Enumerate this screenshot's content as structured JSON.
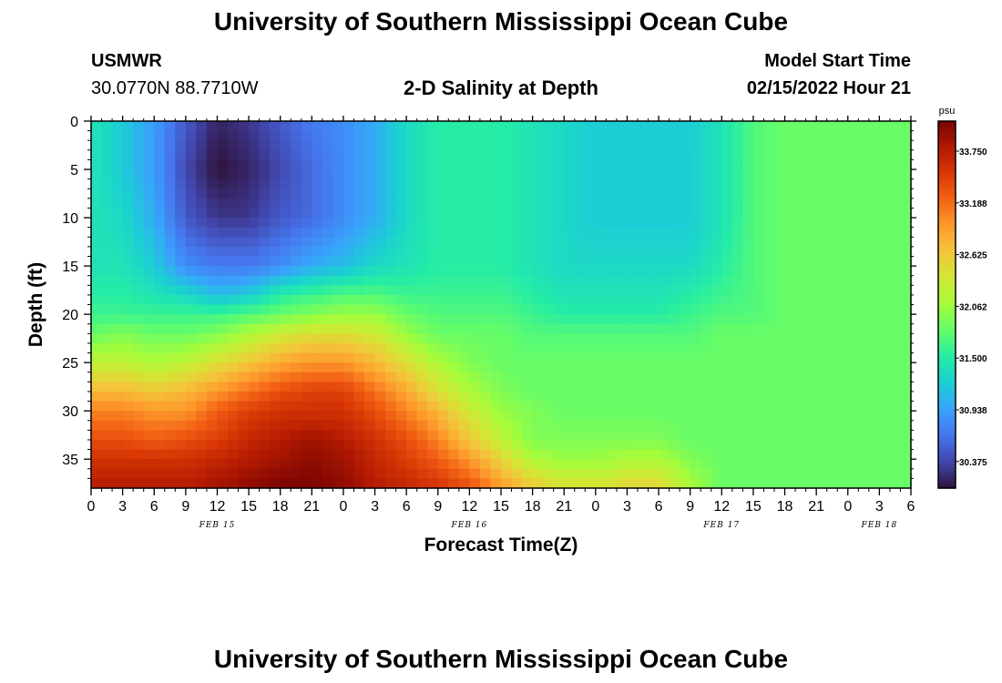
{
  "header": {
    "title": "University of Southern Mississippi Ocean Cube",
    "station": "USMWR",
    "coordinates": "30.0770N  88.7710W",
    "subtitle": "2-D Salinity at Depth",
    "model_start_label": "Model Start Time",
    "model_start_value": "02/15/2022 Hour 21"
  },
  "footer": {
    "title": "University of Southern Mississippi Ocean Cube"
  },
  "colorbar": {
    "unit": "psu",
    "ticks": [
      "33.750",
      "33.188",
      "32.625",
      "32.062",
      "31.500",
      "30.938",
      "30.375"
    ]
  },
  "chart_data": {
    "type": "heatmap",
    "title": "2-D Salinity at Depth",
    "xlabel": "Forecast Time(Z)",
    "ylabel": "Depth (ft)",
    "x_tick_labels": [
      "0",
      "3",
      "6",
      "9",
      "12",
      "15",
      "18",
      "21",
      "0",
      "3",
      "6",
      "9",
      "12",
      "15",
      "18",
      "21",
      "0",
      "3",
      "6",
      "9",
      "12",
      "15",
      "18",
      "21",
      "0",
      "3",
      "6"
    ],
    "x_day_labels": [
      {
        "label": "FEB 15",
        "hours": 12
      },
      {
        "label": "FEB 16",
        "hours": 36
      },
      {
        "label": "FEB 17",
        "hours": 60
      },
      {
        "label": "FEB 18",
        "hours": 75
      }
    ],
    "xlim_hours": [
      0,
      78
    ],
    "y_ticks": [
      0,
      5,
      10,
      15,
      20,
      25,
      30,
      35
    ],
    "ylim": [
      38,
      0
    ],
    "value_range": [
      30.1,
      34.0
    ],
    "colormap": [
      "#30123b",
      "#4145ab",
      "#4675ed",
      "#39a2fc",
      "#1bcfd4",
      "#24eca6",
      "#61fc6c",
      "#a4fc3b",
      "#d1e834",
      "#f3c63a",
      "#fe9b2d",
      "#f36315",
      "#d93806",
      "#b11901",
      "#7a0402"
    ],
    "salinity_hours": [
      0,
      3,
      6,
      9,
      12,
      15,
      18,
      21,
      24,
      27,
      30,
      33,
      36,
      39,
      42,
      45,
      48,
      51,
      54,
      57,
      60,
      63,
      66,
      69,
      72,
      75,
      78
    ],
    "salinity_depths_ft": [
      0,
      5,
      10,
      15,
      18,
      20,
      22,
      25,
      28,
      30,
      33,
      35,
      38
    ],
    "salinity_psu": [
      [
        31.4,
        31.2,
        30.9,
        30.5,
        30.2,
        30.3,
        30.5,
        30.7,
        30.8,
        31.0,
        31.3,
        31.5,
        31.5,
        31.5,
        31.4,
        31.3,
        31.2,
        31.2,
        31.2,
        31.2,
        31.4,
        31.7,
        31.8,
        31.8,
        31.8,
        31.8,
        31.8
      ],
      [
        31.4,
        31.2,
        30.9,
        30.4,
        30.1,
        30.2,
        30.4,
        30.6,
        30.8,
        31.0,
        31.3,
        31.5,
        31.5,
        31.5,
        31.4,
        31.3,
        31.2,
        31.2,
        31.2,
        31.2,
        31.4,
        31.7,
        31.8,
        31.8,
        31.8,
        31.8,
        31.8
      ],
      [
        31.4,
        31.3,
        31.0,
        30.5,
        30.3,
        30.3,
        30.5,
        30.6,
        30.8,
        31.0,
        31.3,
        31.5,
        31.5,
        31.5,
        31.4,
        31.3,
        31.2,
        31.2,
        31.2,
        31.2,
        31.4,
        31.7,
        31.8,
        31.8,
        31.8,
        31.8,
        31.8
      ],
      [
        31.4,
        31.4,
        31.2,
        30.8,
        30.7,
        30.7,
        30.8,
        31.0,
        31.1,
        31.3,
        31.4,
        31.5,
        31.5,
        31.5,
        31.4,
        31.3,
        31.3,
        31.3,
        31.3,
        31.3,
        31.5,
        31.7,
        31.8,
        31.8,
        31.8,
        31.8,
        31.8
      ],
      [
        31.5,
        31.5,
        31.4,
        31.3,
        31.1,
        31.2,
        31.5,
        31.6,
        31.7,
        31.7,
        31.6,
        31.6,
        31.6,
        31.6,
        31.5,
        31.4,
        31.4,
        31.4,
        31.4,
        31.5,
        31.6,
        31.7,
        31.8,
        31.8,
        31.8,
        31.8,
        31.8
      ],
      [
        31.6,
        31.6,
        31.6,
        31.6,
        31.6,
        31.7,
        31.8,
        31.9,
        32.0,
        32.0,
        31.8,
        31.7,
        31.7,
        31.7,
        31.6,
        31.5,
        31.5,
        31.5,
        31.5,
        31.6,
        31.7,
        31.7,
        31.8,
        31.8,
        31.8,
        31.8,
        31.8
      ],
      [
        31.8,
        31.9,
        31.8,
        31.8,
        31.9,
        32.1,
        32.3,
        32.4,
        32.4,
        32.3,
        32.0,
        31.8,
        31.8,
        31.8,
        31.7,
        31.7,
        31.7,
        31.7,
        31.7,
        31.7,
        31.8,
        31.8,
        31.8,
        31.8,
        31.8,
        31.8,
        31.8
      ],
      [
        32.2,
        32.2,
        32.1,
        32.2,
        32.4,
        32.6,
        32.8,
        32.9,
        32.9,
        32.7,
        32.4,
        32.1,
        31.9,
        31.8,
        31.8,
        31.8,
        31.8,
        31.8,
        31.8,
        31.8,
        31.8,
        31.8,
        31.8,
        31.8,
        31.8,
        31.8,
        31.8
      ],
      [
        32.7,
        32.7,
        32.6,
        32.7,
        32.9,
        33.1,
        33.3,
        33.4,
        33.4,
        33.1,
        32.8,
        32.4,
        32.1,
        31.9,
        31.8,
        31.8,
        31.8,
        31.8,
        31.8,
        31.8,
        31.8,
        31.8,
        31.8,
        31.8,
        31.8,
        31.8,
        31.8
      ],
      [
        33.0,
        33.0,
        32.9,
        32.9,
        33.2,
        33.4,
        33.5,
        33.5,
        33.5,
        33.3,
        33.0,
        32.7,
        32.3,
        32.0,
        31.9,
        31.8,
        31.8,
        31.8,
        31.8,
        31.8,
        31.8,
        31.8,
        31.8,
        31.8,
        31.8,
        31.8,
        31.8
      ],
      [
        33.3,
        33.3,
        33.2,
        33.3,
        33.4,
        33.6,
        33.7,
        33.8,
        33.7,
        33.5,
        33.3,
        33.0,
        32.6,
        32.2,
        31.9,
        31.9,
        31.9,
        31.9,
        31.9,
        31.8,
        31.8,
        31.8,
        31.8,
        31.8,
        31.8,
        31.8,
        31.8
      ],
      [
        33.5,
        33.5,
        33.5,
        33.5,
        33.6,
        33.7,
        33.8,
        33.9,
        33.8,
        33.6,
        33.4,
        33.2,
        32.9,
        32.5,
        32.1,
        32.0,
        32.0,
        32.1,
        32.1,
        31.9,
        31.8,
        31.8,
        31.8,
        31.8,
        31.8,
        31.8,
        31.8
      ],
      [
        33.7,
        33.7,
        33.7,
        33.7,
        33.8,
        33.9,
        34.0,
        34.0,
        33.9,
        33.7,
        33.6,
        33.5,
        33.3,
        32.9,
        32.6,
        32.4,
        32.4,
        32.5,
        32.5,
        32.1,
        31.8,
        31.8,
        31.8,
        31.8,
        31.8,
        31.8,
        31.8
      ]
    ]
  }
}
